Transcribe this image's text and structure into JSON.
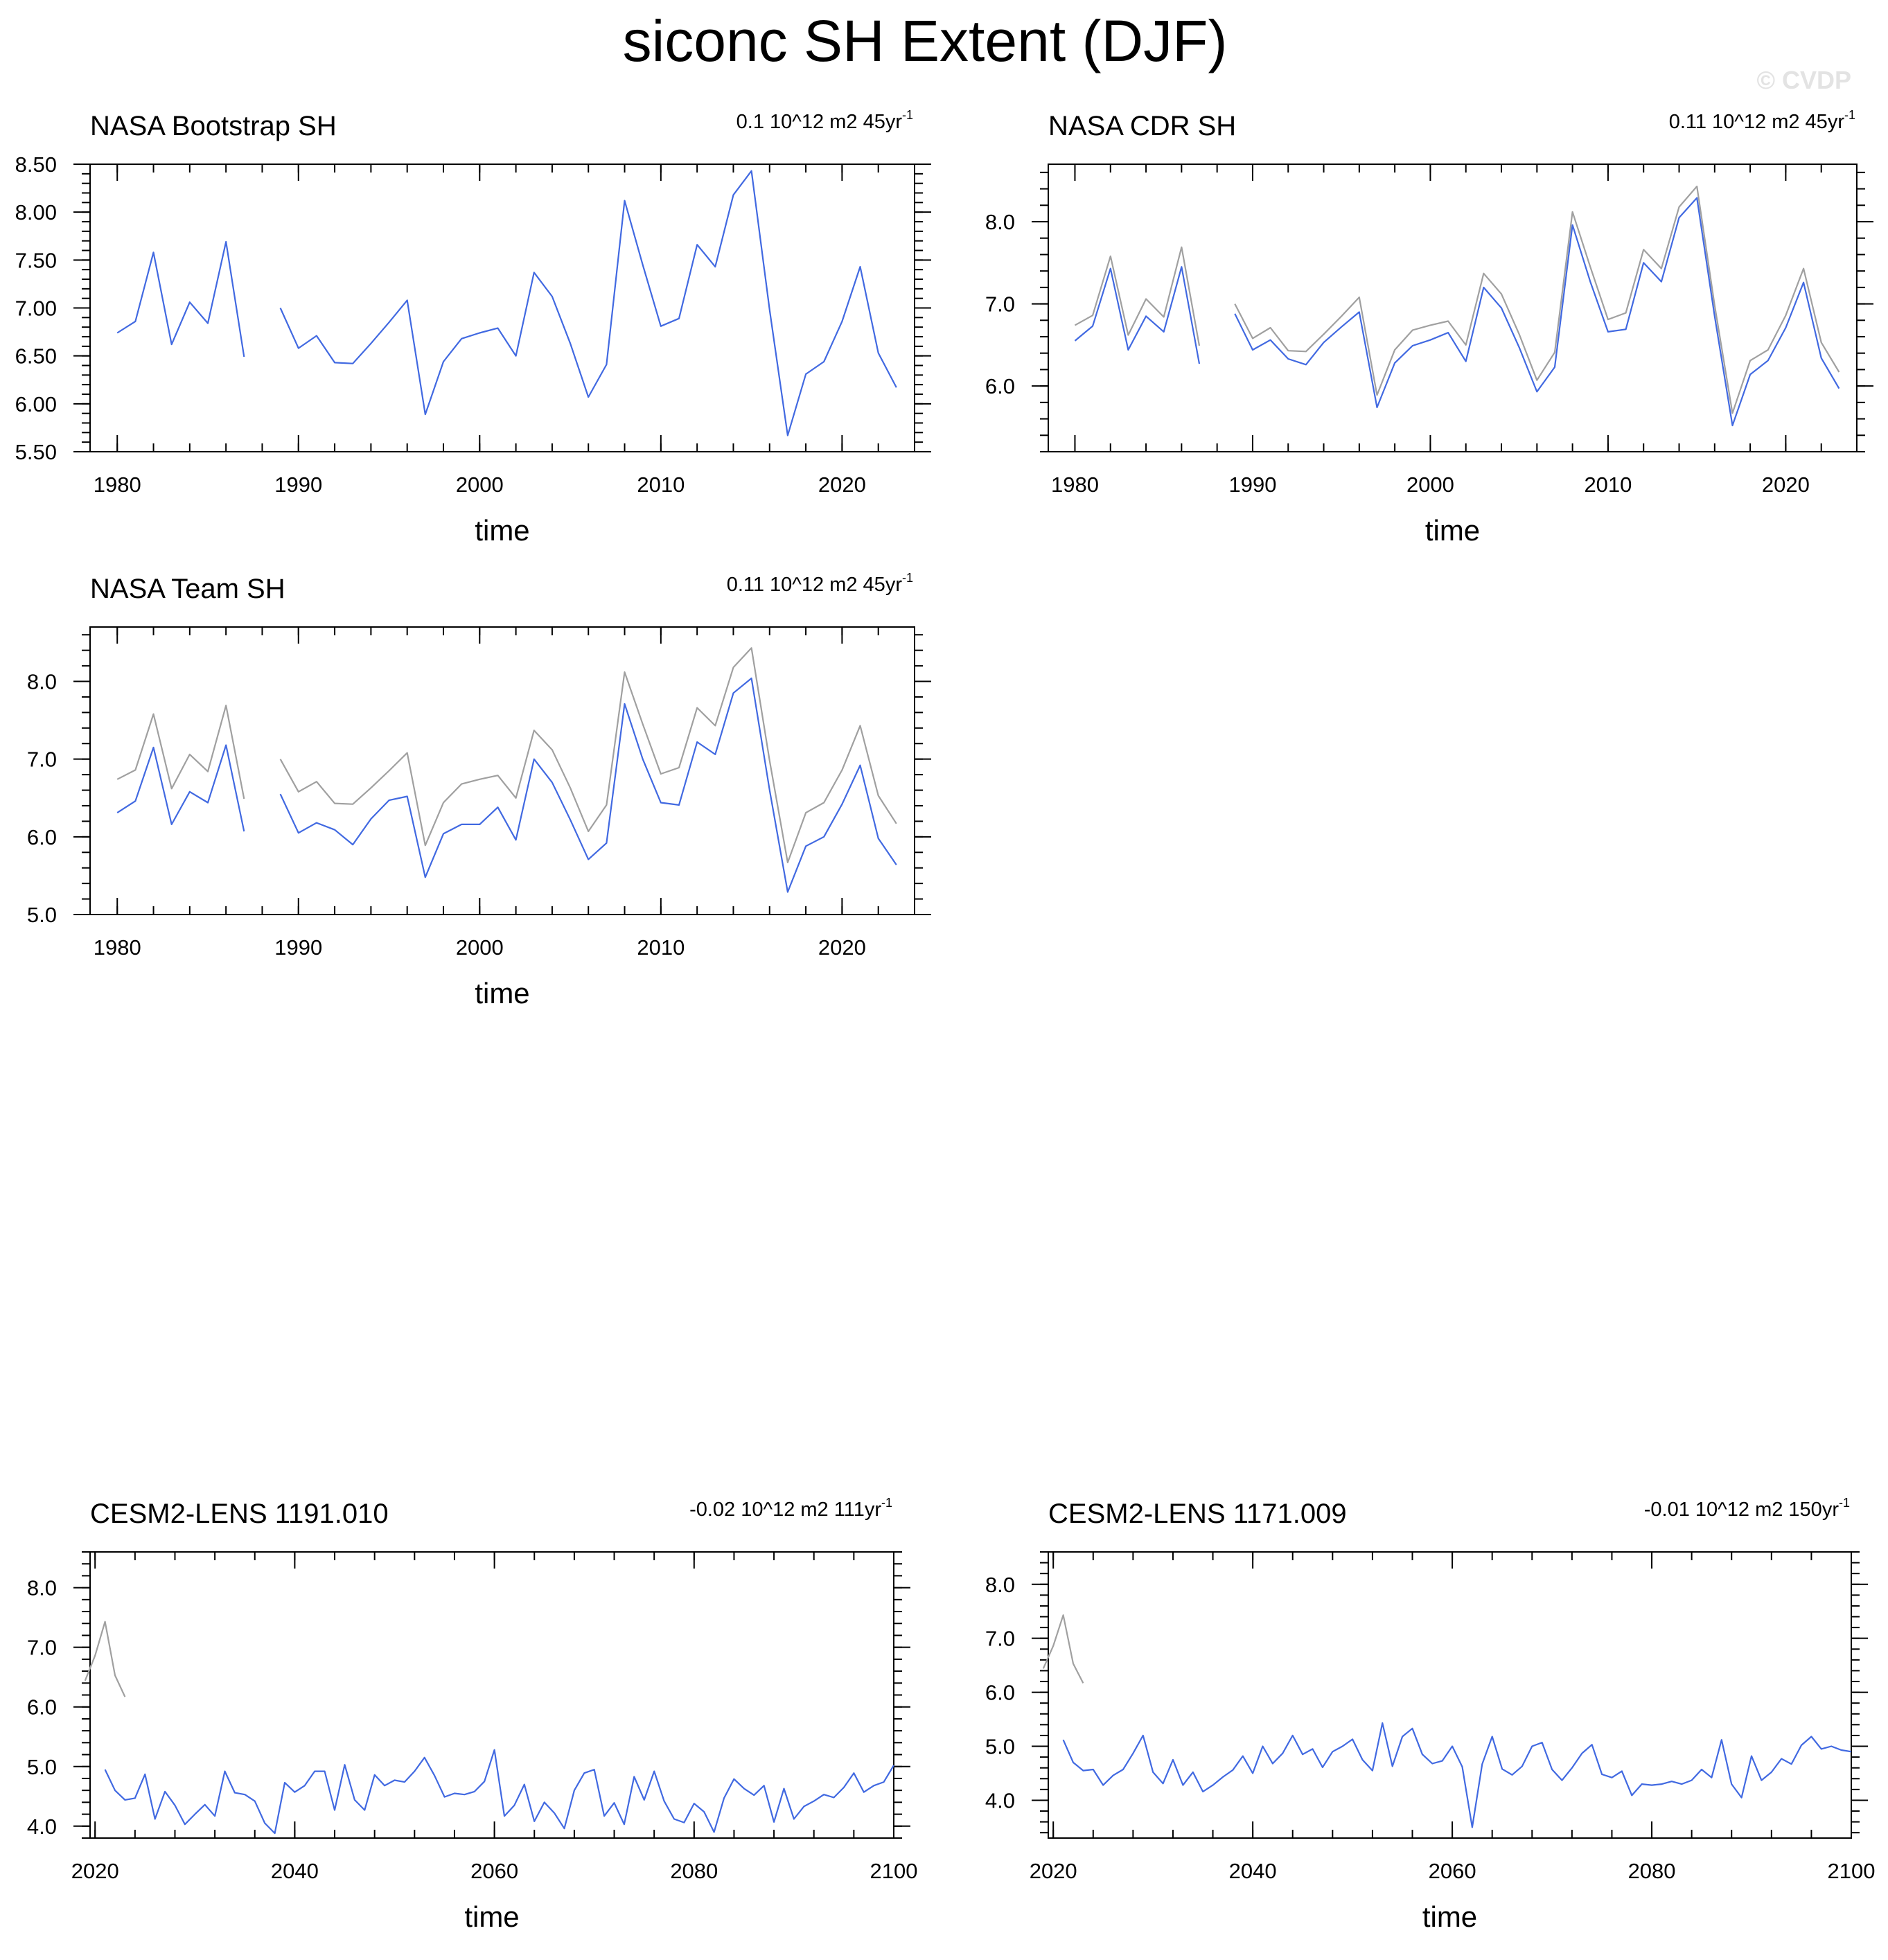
{
  "figure_title": "siconc SH Extent (DJF)",
  "watermark": "© CVDP",
  "colors": {
    "obs": "#a0a0a0",
    "model": "#4169e1"
  },
  "chart_data": [
    {
      "id": "nasa-bootstrap",
      "type": "line",
      "title": "NASA Bootstrap SH",
      "trend_label": "0.1 10^12 m2 45yr",
      "trend_sup": "-1",
      "xlabel": "time",
      "ylabel": "",
      "xlim": [
        1978.5,
        2024
      ],
      "ylim": [
        5.5,
        8.5
      ],
      "xticks": [
        1980,
        1990,
        2000,
        2010,
        2020
      ],
      "xtick_labels": [
        "1980",
        "1990",
        "2000",
        "2010",
        "2020"
      ],
      "yticks": [
        5.5,
        6.0,
        6.5,
        7.0,
        7.5,
        8.0,
        8.5
      ],
      "ytick_labels": [
        "5.50",
        "6.00",
        "6.50",
        "7.00",
        "7.50",
        "8.00",
        "8.50"
      ],
      "x_start": 1980,
      "series": [
        {
          "name": "NASA Bootstrap SH",
          "role": "model",
          "values": [
            6.74,
            6.86,
            7.58,
            6.62,
            7.06,
            6.84,
            7.69,
            6.49,
            null,
            7.0,
            6.58,
            6.71,
            6.43,
            6.42,
            6.63,
            6.85,
            7.08,
            5.89,
            6.44,
            6.68,
            6.74,
            6.79,
            6.5,
            7.37,
            7.12,
            6.63,
            6.07,
            6.41,
            8.12,
            7.45,
            6.81,
            6.89,
            7.66,
            7.43,
            8.18,
            8.43,
            6.98,
            5.67,
            6.31,
            6.44,
            6.86,
            7.43,
            6.53,
            6.17
          ]
        }
      ]
    },
    {
      "id": "nasa-cdr",
      "type": "line",
      "title": "NASA CDR SH",
      "trend_label": "0.11 10^12 m2 45yr",
      "trend_sup": "-1",
      "xlabel": "time",
      "ylabel": "",
      "xlim": [
        1978.5,
        2024
      ],
      "ylim": [
        5.2,
        8.7
      ],
      "xticks": [
        1980,
        1990,
        2000,
        2010,
        2020
      ],
      "xtick_labels": [
        "1980",
        "1990",
        "2000",
        "2010",
        "2020"
      ],
      "yticks": [
        6.0,
        7.0,
        8.0
      ],
      "ytick_labels": [
        "6.0",
        "7.0",
        "8.0"
      ],
      "x_start": 1980,
      "series": [
        {
          "name": "Observations",
          "role": "obs",
          "values": [
            6.74,
            6.86,
            7.58,
            6.62,
            7.06,
            6.84,
            7.69,
            6.49,
            null,
            7.0,
            6.58,
            6.71,
            6.43,
            6.42,
            6.63,
            6.85,
            7.08,
            5.89,
            6.44,
            6.68,
            6.74,
            6.79,
            6.5,
            7.37,
            7.12,
            6.63,
            6.07,
            6.41,
            8.12,
            7.45,
            6.81,
            6.89,
            7.66,
            7.43,
            8.18,
            8.43,
            6.98,
            5.67,
            6.31,
            6.44,
            6.86,
            7.43,
            6.53,
            6.17
          ]
        },
        {
          "name": "NASA CDR SH",
          "role": "model",
          "values": [
            6.55,
            6.73,
            7.43,
            6.44,
            6.85,
            6.66,
            7.45,
            6.27,
            null,
            6.88,
            6.44,
            6.56,
            6.33,
            6.26,
            6.53,
            6.72,
            6.9,
            5.74,
            6.28,
            6.49,
            6.56,
            6.65,
            6.3,
            7.2,
            6.95,
            6.47,
            5.93,
            6.23,
            7.96,
            7.27,
            6.66,
            6.69,
            7.5,
            7.27,
            8.05,
            8.29,
            6.85,
            5.52,
            6.14,
            6.31,
            6.71,
            7.26,
            6.34,
            5.97
          ]
        }
      ]
    },
    {
      "id": "nasa-team",
      "type": "line",
      "title": "NASA Team SH",
      "trend_label": "0.11 10^12 m2 45yr",
      "trend_sup": "-1",
      "xlabel": "time",
      "ylabel": "",
      "xlim": [
        1978.5,
        2024
      ],
      "ylim": [
        5.0,
        8.7
      ],
      "xticks": [
        1980,
        1990,
        2000,
        2010,
        2020
      ],
      "xtick_labels": [
        "1980",
        "1990",
        "2000",
        "2010",
        "2020"
      ],
      "yticks": [
        5.0,
        6.0,
        7.0,
        8.0
      ],
      "ytick_labels": [
        "5.0",
        "6.0",
        "7.0",
        "8.0"
      ],
      "x_start": 1980,
      "series": [
        {
          "name": "Observations",
          "role": "obs",
          "values": [
            6.74,
            6.86,
            7.58,
            6.62,
            7.06,
            6.84,
            7.69,
            6.49,
            null,
            7.0,
            6.58,
            6.71,
            6.43,
            6.42,
            6.63,
            6.85,
            7.08,
            5.89,
            6.44,
            6.68,
            6.74,
            6.79,
            6.5,
            7.37,
            7.12,
            6.63,
            6.07,
            6.41,
            8.12,
            7.45,
            6.81,
            6.89,
            7.66,
            7.43,
            8.18,
            8.43,
            6.98,
            5.67,
            6.31,
            6.44,
            6.86,
            7.43,
            6.53,
            6.17
          ]
        },
        {
          "name": "NASA Team SH",
          "role": "model",
          "values": [
            6.31,
            6.46,
            7.15,
            6.16,
            6.58,
            6.44,
            7.18,
            6.07,
            null,
            6.55,
            6.05,
            6.18,
            6.09,
            5.9,
            6.23,
            6.47,
            6.52,
            5.48,
            6.04,
            6.16,
            6.16,
            6.38,
            5.96,
            7.0,
            6.7,
            6.22,
            5.71,
            5.92,
            7.71,
            7.0,
            6.44,
            6.41,
            7.22,
            7.06,
            7.85,
            8.04,
            6.6,
            5.29,
            5.88,
            6.0,
            6.42,
            6.92,
            5.98,
            5.64
          ]
        }
      ]
    },
    {
      "id": "cesm2-1191-010",
      "type": "line",
      "title": "CESM2-LENS 1191.010",
      "trend_label": "-0.02 10^12 m2 111yr",
      "trend_sup": "-1",
      "xlabel": "time",
      "ylabel": "",
      "xlim": [
        2019.5,
        2100
      ],
      "ylim": [
        3.8,
        8.6
      ],
      "xticks": [
        2020,
        2040,
        2060,
        2080,
        2100
      ],
      "xtick_labels": [
        "2020",
        "2040",
        "2060",
        "2080",
        "2100"
      ],
      "yticks": [
        4.0,
        5.0,
        6.0,
        7.0,
        8.0
      ],
      "ytick_labels": [
        "4.0",
        "5.0",
        "6.0",
        "7.0",
        "8.0"
      ],
      "x_start": 2019,
      "series": [
        {
          "name": "Observations",
          "role": "obs",
          "values": [
            6.44,
            6.86,
            7.43,
            6.53,
            6.17
          ]
        },
        {
          "name": "CESM2-LENS 1191.010",
          "role": "model",
          "x_start": 2021,
          "values": [
            4.95,
            4.6,
            4.44,
            4.47,
            4.87,
            4.12,
            4.58,
            4.35,
            4.03,
            4.2,
            4.36,
            4.17,
            4.92,
            4.56,
            4.53,
            4.42,
            4.05,
            3.88,
            4.73,
            4.57,
            4.68,
            4.92,
            4.92,
            4.27,
            5.03,
            4.44,
            4.27,
            4.86,
            4.68,
            4.77,
            4.74,
            4.92,
            5.15,
            4.85,
            4.49,
            4.55,
            4.53,
            4.58,
            4.75,
            5.28,
            4.17,
            4.35,
            4.7,
            4.08,
            4.4,
            4.22,
            3.96,
            4.6,
            4.89,
            4.95,
            4.17,
            4.39,
            4.03,
            4.83,
            4.44,
            4.92,
            4.42,
            4.12,
            4.06,
            4.38,
            4.24,
            3.9,
            4.47,
            4.79,
            4.63,
            4.52,
            4.68,
            4.07,
            4.63,
            4.12,
            4.33,
            4.42,
            4.53,
            4.48,
            4.65,
            4.89,
            4.57,
            4.68,
            4.74,
            5.02
          ]
        }
      ]
    },
    {
      "id": "cesm2-1171-009",
      "type": "line",
      "title": "CESM2-LENS 1171.009",
      "trend_label": "-0.01 10^12 m2 150yr",
      "trend_sup": "-1",
      "xlabel": "time",
      "ylabel": "",
      "xlim": [
        2019.5,
        2100
      ],
      "ylim": [
        3.3,
        8.6
      ],
      "xticks": [
        2020,
        2040,
        2060,
        2080,
        2100
      ],
      "xtick_labels": [
        "2020",
        "2040",
        "2060",
        "2080",
        "2100"
      ],
      "yticks": [
        4.0,
        5.0,
        6.0,
        7.0,
        8.0
      ],
      "ytick_labels": [
        "4.0",
        "5.0",
        "6.0",
        "7.0",
        "8.0"
      ],
      "x_start": 2019,
      "series": [
        {
          "name": "Observations",
          "role": "obs",
          "values": [
            6.44,
            6.86,
            7.43,
            6.53,
            6.17
          ]
        },
        {
          "name": "CESM2-LENS 1171.009",
          "role": "model",
          "x_start": 2021,
          "values": [
            5.12,
            4.7,
            4.55,
            4.57,
            4.28,
            4.46,
            4.57,
            4.87,
            5.2,
            4.52,
            4.31,
            4.75,
            4.28,
            4.52,
            4.16,
            4.28,
            4.43,
            4.56,
            4.82,
            4.5,
            5.0,
            4.68,
            4.87,
            5.2,
            4.85,
            4.95,
            4.61,
            4.9,
            5.0,
            5.13,
            4.75,
            4.55,
            5.43,
            4.63,
            5.18,
            5.33,
            4.85,
            4.68,
            4.73,
            5.0,
            4.62,
            3.5,
            4.67,
            5.18,
            4.58,
            4.47,
            4.63,
            5.0,
            5.07,
            4.57,
            4.37,
            4.6,
            4.87,
            5.03,
            4.48,
            4.42,
            4.54,
            4.09,
            4.3,
            4.28,
            4.3,
            4.35,
            4.3,
            4.37,
            4.57,
            4.42,
            5.12,
            4.3,
            4.05,
            4.82,
            4.37,
            4.52,
            4.77,
            4.67,
            5.02,
            5.18,
            4.95,
            5.0,
            4.93,
            4.9
          ]
        }
      ]
    }
  ]
}
